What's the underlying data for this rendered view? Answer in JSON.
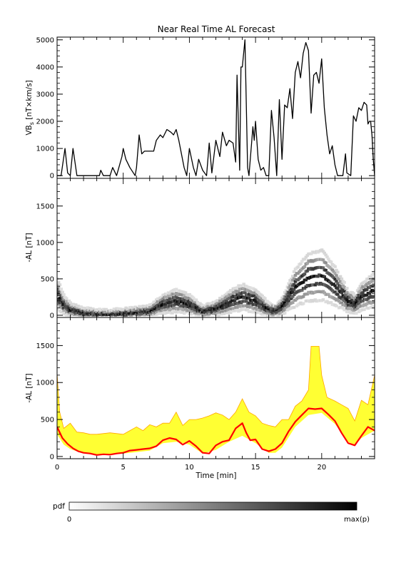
{
  "chart_data": [
    {
      "type": "line",
      "title": "Near Real Time AL Forecast",
      "ylabel_main": "VB",
      "ylabel_sub": "s",
      "ylabel_rest": " [nT×km/s]",
      "ylim": [
        -100,
        5100
      ],
      "yticks": [
        0,
        1000,
        2000,
        3000,
        4000,
        5000
      ],
      "xlim": [
        0,
        24
      ],
      "grid": false,
      "series": [
        {
          "color": "#000000",
          "points": [
            [
              0,
              0
            ],
            [
              0.3,
              0
            ],
            [
              0.6,
              1000
            ],
            [
              0.8,
              100
            ],
            [
              1.0,
              0
            ],
            [
              1.2,
              1000
            ],
            [
              1.5,
              0
            ],
            [
              2.0,
              0
            ],
            [
              2.4,
              0
            ],
            [
              3.2,
              0
            ],
            [
              3.3,
              200
            ],
            [
              3.5,
              0
            ],
            [
              4.0,
              0
            ],
            [
              4.2,
              300
            ],
            [
              4.5,
              0
            ],
            [
              4.9,
              700
            ],
            [
              5.0,
              1000
            ],
            [
              5.2,
              600
            ],
            [
              5.5,
              300
            ],
            [
              5.9,
              0
            ],
            [
              6.0,
              300
            ],
            [
              6.2,
              1500
            ],
            [
              6.4,
              800
            ],
            [
              6.6,
              900
            ],
            [
              7.3,
              900
            ],
            [
              7.5,
              1300
            ],
            [
              7.8,
              1500
            ],
            [
              8.0,
              1400
            ],
            [
              8.3,
              1700
            ],
            [
              8.6,
              1600
            ],
            [
              8.8,
              1500
            ],
            [
              9.0,
              1700
            ],
            [
              9.2,
              1300
            ],
            [
              9.4,
              800
            ],
            [
              9.6,
              300
            ],
            [
              9.8,
              0
            ],
            [
              10.0,
              1000
            ],
            [
              10.3,
              300
            ],
            [
              10.5,
              0
            ],
            [
              10.7,
              600
            ],
            [
              11.0,
              200
            ],
            [
              11.3,
              0
            ],
            [
              11.5,
              1200
            ],
            [
              11.7,
              100
            ],
            [
              12.0,
              1300
            ],
            [
              12.3,
              700
            ],
            [
              12.5,
              1600
            ],
            [
              12.8,
              1100
            ],
            [
              13.0,
              1300
            ],
            [
              13.3,
              1200
            ],
            [
              13.5,
              500
            ],
            [
              13.6,
              3700
            ],
            [
              13.8,
              200
            ],
            [
              13.9,
              4000
            ],
            [
              14.0,
              4000
            ],
            [
              14.2,
              5000
            ],
            [
              14.4,
              300
            ],
            [
              14.5,
              0
            ],
            [
              14.7,
              1200
            ],
            [
              14.8,
              1800
            ],
            [
              14.9,
              1300
            ],
            [
              15.0,
              2000
            ],
            [
              15.2,
              600
            ],
            [
              15.4,
              200
            ],
            [
              15.6,
              300
            ],
            [
              15.8,
              0
            ],
            [
              16.0,
              0
            ],
            [
              16.2,
              2400
            ],
            [
              16.4,
              1400
            ],
            [
              16.6,
              0
            ],
            [
              16.8,
              2800
            ],
            [
              17.0,
              600
            ],
            [
              17.2,
              2600
            ],
            [
              17.4,
              2500
            ],
            [
              17.6,
              3200
            ],
            [
              17.8,
              2100
            ],
            [
              18.0,
              3800
            ],
            [
              18.2,
              4200
            ],
            [
              18.4,
              3600
            ],
            [
              18.6,
              4500
            ],
            [
              18.8,
              4900
            ],
            [
              19.0,
              4600
            ],
            [
              19.2,
              2300
            ],
            [
              19.4,
              3700
            ],
            [
              19.6,
              3800
            ],
            [
              19.8,
              3400
            ],
            [
              20.0,
              4300
            ],
            [
              20.2,
              2500
            ],
            [
              20.4,
              1500
            ],
            [
              20.6,
              800
            ],
            [
              20.8,
              1100
            ],
            [
              21.0,
              400
            ],
            [
              21.2,
              0
            ],
            [
              21.6,
              0
            ],
            [
              21.8,
              800
            ],
            [
              21.9,
              100
            ],
            [
              22.2,
              0
            ],
            [
              22.4,
              2200
            ],
            [
              22.6,
              2000
            ],
            [
              22.8,
              2500
            ],
            [
              23.0,
              2400
            ],
            [
              23.2,
              2700
            ],
            [
              23.4,
              2600
            ],
            [
              23.5,
              1900
            ],
            [
              23.6,
              2000
            ],
            [
              23.7,
              2000
            ],
            [
              23.8,
              1500
            ],
            [
              23.9,
              600
            ],
            [
              24.0,
              0
            ]
          ]
        }
      ]
    },
    {
      "type": "heatmap",
      "ylabel": "-AL [nT]",
      "ylim": [
        -30,
        1880
      ],
      "yticks": [
        0,
        500,
        1000,
        1500
      ],
      "xlim": [
        0,
        24
      ],
      "colorbar": {
        "label": "pdf",
        "min_label": "0",
        "max_label": "max(p)",
        "colors": [
          "#ffffff",
          "#000000"
        ]
      },
      "ridge": [
        [
          0,
          300
        ],
        [
          0.5,
          150
        ],
        [
          1,
          80
        ],
        [
          2,
          40
        ],
        [
          3,
          20
        ],
        [
          4,
          20
        ],
        [
          5,
          30
        ],
        [
          6,
          40
        ],
        [
          7,
          60
        ],
        [
          8,
          150
        ],
        [
          9,
          200
        ],
        [
          10,
          150
        ],
        [
          11,
          60
        ],
        [
          12,
          90
        ],
        [
          13,
          180
        ],
        [
          14,
          250
        ],
        [
          15,
          200
        ],
        [
          16,
          80
        ],
        [
          16.5,
          60
        ],
        [
          17,
          120
        ],
        [
          18,
          380
        ],
        [
          19,
          520
        ],
        [
          20,
          550
        ],
        [
          21,
          400
        ],
        [
          22,
          200
        ],
        [
          22.5,
          150
        ],
        [
          23,
          250
        ],
        [
          24,
          350
        ]
      ]
    },
    {
      "type": "area",
      "ylabel": "-AL [nT]",
      "xlabel": "Time [min]",
      "ylim": [
        -30,
        1880
      ],
      "yticks": [
        0,
        500,
        1000,
        1500
      ],
      "xticks": [
        0,
        5,
        10,
        15,
        20
      ],
      "xlim": [
        0,
        24
      ],
      "fill_color": "#ffff33",
      "edge_color": "#ffa500",
      "median_color": "#ff0000",
      "band_upper": [
        [
          0,
          1120
        ],
        [
          0.2,
          600
        ],
        [
          0.5,
          380
        ],
        [
          1,
          450
        ],
        [
          1.5,
          330
        ],
        [
          2,
          320
        ],
        [
          2.5,
          300
        ],
        [
          3,
          300
        ],
        [
          4,
          320
        ],
        [
          5,
          300
        ],
        [
          5.5,
          350
        ],
        [
          6,
          400
        ],
        [
          6.5,
          350
        ],
        [
          7,
          430
        ],
        [
          7.5,
          400
        ],
        [
          8,
          450
        ],
        [
          8.5,
          450
        ],
        [
          9,
          600
        ],
        [
          9.5,
          420
        ],
        [
          10,
          500
        ],
        [
          10.5,
          500
        ],
        [
          11,
          520
        ],
        [
          11.5,
          550
        ],
        [
          12,
          590
        ],
        [
          12.5,
          560
        ],
        [
          13,
          500
        ],
        [
          13.5,
          600
        ],
        [
          14,
          780
        ],
        [
          14.5,
          600
        ],
        [
          15,
          550
        ],
        [
          15.5,
          450
        ],
        [
          16,
          420
        ],
        [
          16.5,
          400
        ],
        [
          17,
          500
        ],
        [
          17.5,
          500
        ],
        [
          18,
          680
        ],
        [
          18.5,
          750
        ],
        [
          19,
          900
        ],
        [
          19.2,
          1490
        ],
        [
          19.8,
          1490
        ],
        [
          20,
          1100
        ],
        [
          20.4,
          800
        ],
        [
          21,
          750
        ],
        [
          21.5,
          700
        ],
        [
          22,
          650
        ],
        [
          22.5,
          480
        ],
        [
          23,
          760
        ],
        [
          23.5,
          700
        ],
        [
          24,
          1100
        ]
      ],
      "band_lower": [
        [
          0,
          300
        ],
        [
          0.5,
          160
        ],
        [
          1,
          100
        ],
        [
          2,
          40
        ],
        [
          3,
          20
        ],
        [
          4,
          20
        ],
        [
          5,
          40
        ],
        [
          6,
          60
        ],
        [
          7,
          80
        ],
        [
          8,
          180
        ],
        [
          9,
          200
        ],
        [
          10,
          160
        ],
        [
          11,
          40
        ],
        [
          12,
          90
        ],
        [
          13,
          200
        ],
        [
          14,
          280
        ],
        [
          15,
          180
        ],
        [
          16,
          50
        ],
        [
          16.5,
          50
        ],
        [
          17,
          120
        ],
        [
          18,
          400
        ],
        [
          19,
          560
        ],
        [
          20,
          590
        ],
        [
          21,
          440
        ],
        [
          22,
          200
        ],
        [
          22.5,
          150
        ],
        [
          23,
          250
        ],
        [
          24,
          350
        ]
      ],
      "median": [
        [
          0,
          400
        ],
        [
          0.4,
          250
        ],
        [
          0.8,
          170
        ],
        [
          1.2,
          110
        ],
        [
          1.6,
          70
        ],
        [
          2,
          50
        ],
        [
          2.5,
          40
        ],
        [
          3,
          20
        ],
        [
          3.5,
          30
        ],
        [
          4,
          25
        ],
        [
          4.5,
          40
        ],
        [
          5,
          50
        ],
        [
          5.5,
          80
        ],
        [
          6,
          90
        ],
        [
          6.5,
          100
        ],
        [
          7,
          110
        ],
        [
          7.5,
          140
        ],
        [
          8,
          220
        ],
        [
          8.5,
          250
        ],
        [
          9,
          230
        ],
        [
          9.5,
          160
        ],
        [
          10,
          210
        ],
        [
          10.5,
          140
        ],
        [
          11,
          50
        ],
        [
          11.5,
          40
        ],
        [
          12,
          150
        ],
        [
          12.5,
          200
        ],
        [
          13,
          220
        ],
        [
          13.5,
          380
        ],
        [
          14,
          450
        ],
        [
          14.3,
          320
        ],
        [
          14.6,
          220
        ],
        [
          15,
          230
        ],
        [
          15.5,
          100
        ],
        [
          16,
          70
        ],
        [
          16.5,
          100
        ],
        [
          17,
          180
        ],
        [
          17.5,
          340
        ],
        [
          18,
          470
        ],
        [
          18.5,
          560
        ],
        [
          19,
          650
        ],
        [
          19.5,
          640
        ],
        [
          20,
          650
        ],
        [
          20.5,
          570
        ],
        [
          21,
          480
        ],
        [
          21.5,
          320
        ],
        [
          22,
          180
        ],
        [
          22.5,
          150
        ],
        [
          23,
          280
        ],
        [
          23.5,
          400
        ],
        [
          24,
          350
        ]
      ]
    }
  ]
}
